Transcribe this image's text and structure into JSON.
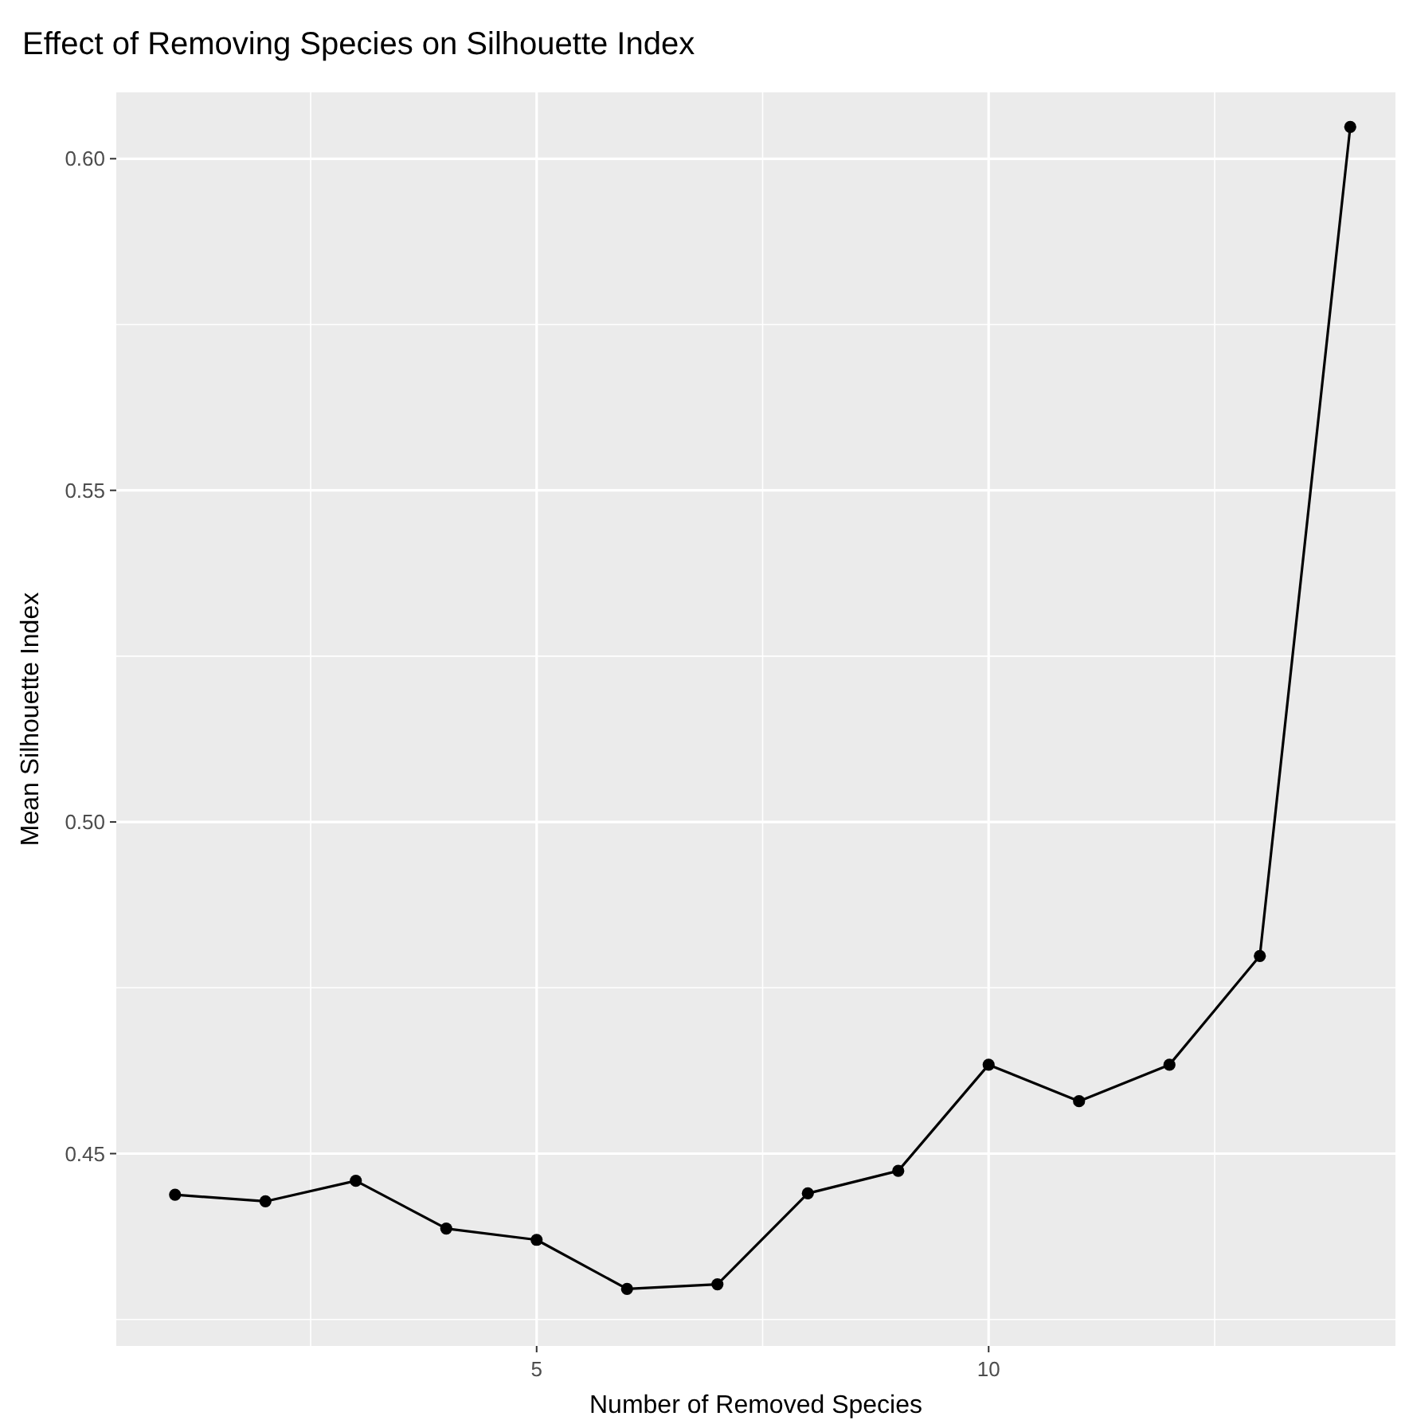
{
  "chart_data": {
    "type": "line",
    "title": "Effect of Removing Species on Silhouette Index",
    "xlabel": "Number of Removed Species",
    "ylabel": "Mean Silhouette Index",
    "x": [
      1,
      2,
      3,
      4,
      5,
      6,
      7,
      8,
      9,
      10,
      11,
      12,
      13,
      14
    ],
    "series": [
      {
        "color": "#000000",
        "values": [
          0.4438,
          0.4428,
          0.4459,
          0.4387,
          0.437,
          0.4296,
          0.4303,
          0.444,
          0.4474,
          0.4634,
          0.4579,
          0.4634,
          0.4798,
          0.6048
        ]
      }
    ],
    "xlim": [
      0.35,
      14.5
    ],
    "xticks": [
      5,
      10
    ],
    "ylim": [
      0.421,
      0.61
    ],
    "yticks": [
      0.45,
      {
        "value": 0.5,
        "label": "0.50"
      },
      0.55,
      {
        "value": 0.6,
        "label": "0.60"
      }
    ],
    "grid": true,
    "marker": "circle",
    "line_style": "solid"
  }
}
